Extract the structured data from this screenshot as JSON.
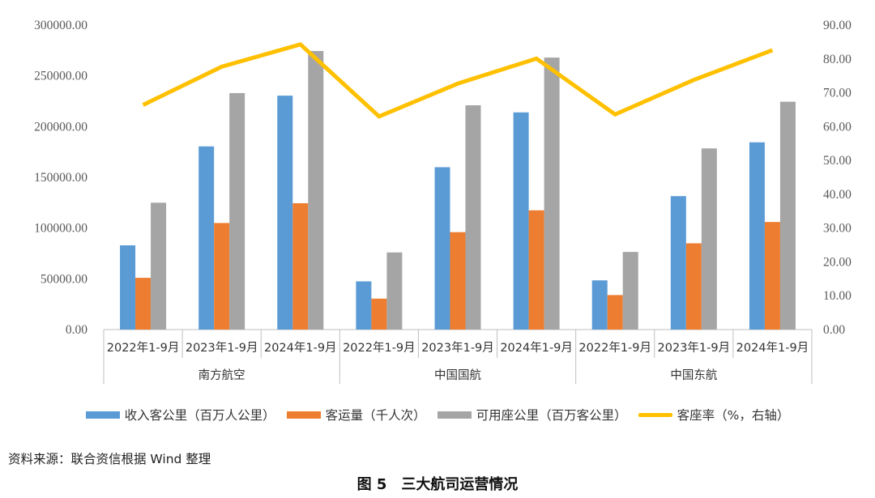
{
  "chart_data": {
    "type": "bar",
    "groups": [
      {
        "name": "南方航空",
        "categories": [
          "2022年1-9月",
          "2023年1-9月",
          "2024年1-9月"
        ]
      },
      {
        "name": "中国国航",
        "categories": [
          "2022年1-9月",
          "2023年1-9月",
          "2024年1-9月"
        ]
      },
      {
        "name": "中国东航",
        "categories": [
          "2022年1-9月",
          "2023年1-9月",
          "2024年1-9月"
        ]
      }
    ],
    "series": [
      {
        "name": "收入客公里（百万人公里）",
        "type": "bar",
        "axis": "left",
        "color": "#5B9BD5",
        "values": [
          83000,
          180500,
          230500,
          47500,
          160000,
          214000,
          48500,
          131500,
          184500
        ]
      },
      {
        "name": "客运量（千人次）",
        "type": "bar",
        "axis": "left",
        "color": "#ED7D31",
        "values": [
          51000,
          105000,
          124500,
          30500,
          96000,
          117500,
          34000,
          85000,
          106000
        ]
      },
      {
        "name": "可用座公里（百万客公里）",
        "type": "bar",
        "axis": "left",
        "color": "#A5A5A5",
        "values": [
          125000,
          233000,
          274500,
          76000,
          221000,
          268000,
          76500,
          178500,
          224500
        ]
      },
      {
        "name": "客座率（%，右轴）",
        "type": "line",
        "axis": "right",
        "color": "#FFC000",
        "values": [
          66.4,
          77.7,
          84.3,
          63.0,
          72.7,
          80.1,
          63.6,
          73.8,
          82.6
        ]
      }
    ],
    "y_left": {
      "min": 0,
      "max": 300000,
      "step": 50000,
      "ticks": [
        "0.00",
        "50000.00",
        "100000.00",
        "150000.00",
        "200000.00",
        "250000.00",
        "300000.00"
      ]
    },
    "y_right": {
      "min": 0,
      "max": 90,
      "step": 10,
      "ticks": [
        "0.00",
        "10.00",
        "20.00",
        "30.00",
        "40.00",
        "50.00",
        "60.00",
        "70.00",
        "80.00",
        "90.00"
      ]
    },
    "grid": false,
    "legend_position": "bottom"
  },
  "source_note": "资料来源：联合资信根据 Wind 整理",
  "caption": "图 5　三大航司运营情况"
}
